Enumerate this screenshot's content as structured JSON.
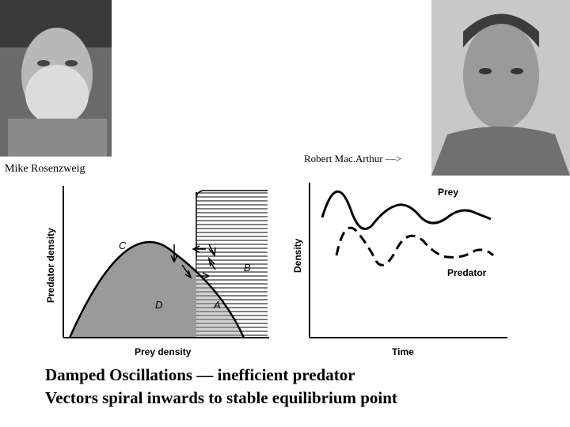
{
  "photos": {
    "left_caption": "Mike Rosenzweig",
    "right_caption": "Robert Mac.Arthur —>"
  },
  "left_plot": {
    "ylabel": "Predator density",
    "xlabel": "Prey density",
    "region_c": "C",
    "region_b": "B",
    "region_d": "D",
    "region_a": "A"
  },
  "right_plot": {
    "ylabel": "Density",
    "xlabel": "Time",
    "prey_label": "Prey",
    "predator_label": "Predator"
  },
  "caption": {
    "line1": "Damped Oscillations — inefficient  predator",
    "line2": "Vectors spiral inwards to stable equilibrium point"
  },
  "colors": {
    "photo_bg": "#555555",
    "hump_fill": "#9a9a9a"
  }
}
